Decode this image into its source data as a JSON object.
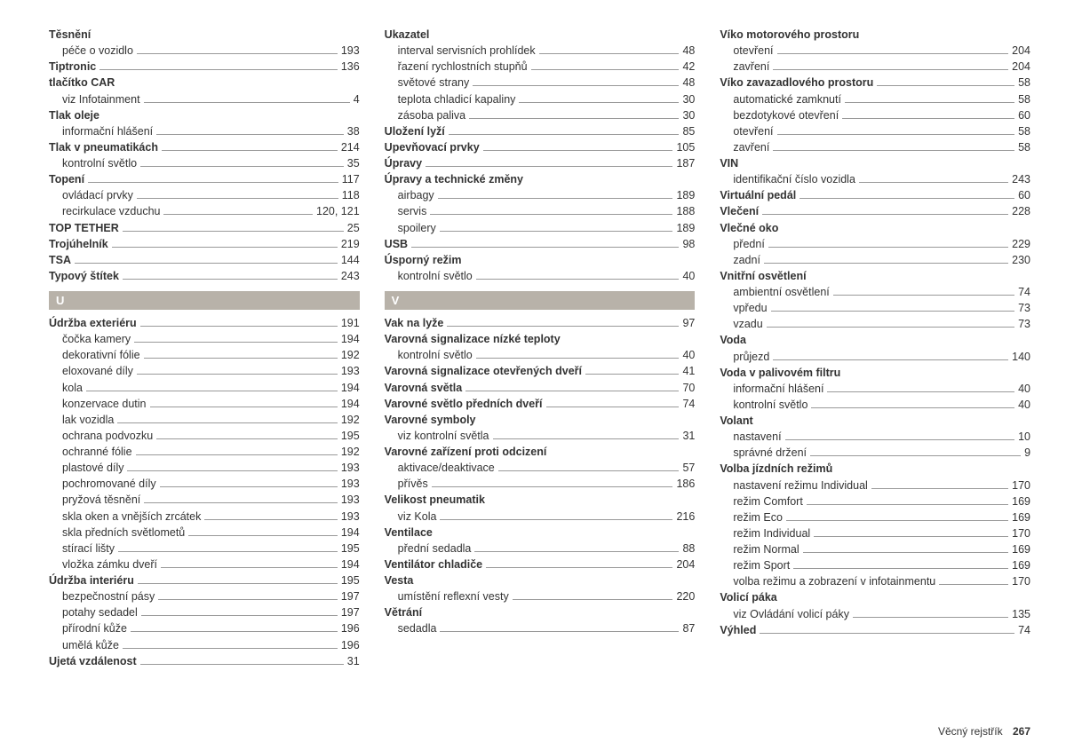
{
  "footer": {
    "label": "Věcný rejstřík",
    "page": "267"
  },
  "columns": [
    {
      "items": [
        {
          "type": "entry",
          "bold": true,
          "label": "Těsnění",
          "heading": true
        },
        {
          "type": "entry",
          "sub": true,
          "label": "péče o vozidlo",
          "page": "193"
        },
        {
          "type": "entry",
          "bold": true,
          "label": "Tiptronic",
          "page": "136"
        },
        {
          "type": "entry",
          "bold": true,
          "label": "tlačítko CAR",
          "heading": true
        },
        {
          "type": "entry",
          "sub": true,
          "label": "viz Infotainment",
          "page": "4"
        },
        {
          "type": "entry",
          "bold": true,
          "label": "Tlak oleje",
          "heading": true
        },
        {
          "type": "entry",
          "sub": true,
          "label": "informační hlášení",
          "page": "38"
        },
        {
          "type": "entry",
          "bold": true,
          "label": "Tlak v pneumatikách",
          "page": "214"
        },
        {
          "type": "entry",
          "sub": true,
          "label": "kontrolní světlo",
          "page": "35"
        },
        {
          "type": "entry",
          "bold": true,
          "label": "Topení",
          "page": "117"
        },
        {
          "type": "entry",
          "sub": true,
          "label": "ovládací prvky",
          "page": "118"
        },
        {
          "type": "entry",
          "sub": true,
          "label": "recirkulace vzduchu",
          "page": "120, 121"
        },
        {
          "type": "entry",
          "bold": true,
          "label": "TOP TETHER",
          "page": "25"
        },
        {
          "type": "entry",
          "bold": true,
          "label": "Trojúhelník",
          "page": "219"
        },
        {
          "type": "entry",
          "bold": true,
          "label": "TSA",
          "page": "144"
        },
        {
          "type": "entry",
          "bold": true,
          "label": "Typový štítek",
          "page": "243"
        },
        {
          "type": "header",
          "label": "U"
        },
        {
          "type": "entry",
          "bold": true,
          "label": "Údržba exteriéru",
          "page": "191"
        },
        {
          "type": "entry",
          "sub": true,
          "label": "čočka kamery",
          "page": "194"
        },
        {
          "type": "entry",
          "sub": true,
          "label": "dekorativní fólie",
          "page": "192"
        },
        {
          "type": "entry",
          "sub": true,
          "label": "eloxované díly",
          "page": "193"
        },
        {
          "type": "entry",
          "sub": true,
          "label": "kola",
          "page": "194"
        },
        {
          "type": "entry",
          "sub": true,
          "label": "konzervace dutin",
          "page": "194"
        },
        {
          "type": "entry",
          "sub": true,
          "label": "lak vozidla",
          "page": "192"
        },
        {
          "type": "entry",
          "sub": true,
          "label": "ochrana podvozku",
          "page": "195"
        },
        {
          "type": "entry",
          "sub": true,
          "label": "ochranné fólie",
          "page": "192"
        },
        {
          "type": "entry",
          "sub": true,
          "label": "plastové díly",
          "page": "193"
        },
        {
          "type": "entry",
          "sub": true,
          "label": "pochromované díly",
          "page": "193"
        },
        {
          "type": "entry",
          "sub": true,
          "label": "pryžová těsnění",
          "page": "193"
        },
        {
          "type": "entry",
          "sub": true,
          "label": "skla oken a vnějších zrcátek",
          "page": "193"
        },
        {
          "type": "entry",
          "sub": true,
          "label": "skla předních světlometů",
          "page": "194"
        },
        {
          "type": "entry",
          "sub": true,
          "label": "stírací lišty",
          "page": "195"
        },
        {
          "type": "entry",
          "sub": true,
          "label": "vložka zámku dveří",
          "page": "194"
        },
        {
          "type": "entry",
          "bold": true,
          "label": "Údržba interiéru",
          "page": "195"
        },
        {
          "type": "entry",
          "sub": true,
          "label": "bezpečnostní pásy",
          "page": "197"
        },
        {
          "type": "entry",
          "sub": true,
          "label": "potahy sedadel",
          "page": "197"
        },
        {
          "type": "entry",
          "sub": true,
          "label": "přírodní kůže",
          "page": "196"
        },
        {
          "type": "entry",
          "sub": true,
          "label": "umělá kůže",
          "page": "196"
        },
        {
          "type": "entry",
          "bold": true,
          "label": "Ujetá vzdálenost",
          "page": "31"
        }
      ]
    },
    {
      "items": [
        {
          "type": "entry",
          "bold": true,
          "label": "Ukazatel",
          "heading": true
        },
        {
          "type": "entry",
          "sub": true,
          "label": "interval servisních prohlídek",
          "page": "48"
        },
        {
          "type": "entry",
          "sub": true,
          "label": "řazení rychlostních stupňů",
          "page": "42"
        },
        {
          "type": "entry",
          "sub": true,
          "label": "světové strany",
          "page": "48"
        },
        {
          "type": "entry",
          "sub": true,
          "label": "teplota chladicí kapaliny",
          "page": "30"
        },
        {
          "type": "entry",
          "sub": true,
          "label": "zásoba paliva",
          "page": "30"
        },
        {
          "type": "entry",
          "bold": true,
          "label": "Uložení lyží",
          "page": "85"
        },
        {
          "type": "entry",
          "bold": true,
          "label": "Upevňovací prvky",
          "page": "105"
        },
        {
          "type": "entry",
          "bold": true,
          "label": "Úpravy",
          "page": "187"
        },
        {
          "type": "entry",
          "bold": true,
          "label": "Úpravy a technické změny",
          "heading": true
        },
        {
          "type": "entry",
          "sub": true,
          "label": "airbagy",
          "page": "189"
        },
        {
          "type": "entry",
          "sub": true,
          "label": "servis",
          "page": "188"
        },
        {
          "type": "entry",
          "sub": true,
          "label": "spoilery",
          "page": "189"
        },
        {
          "type": "entry",
          "bold": true,
          "label": "USB",
          "page": "98"
        },
        {
          "type": "entry",
          "bold": true,
          "label": "Úsporný režim",
          "heading": true
        },
        {
          "type": "entry",
          "sub": true,
          "label": "kontrolní světlo",
          "page": "40"
        },
        {
          "type": "header",
          "label": "V"
        },
        {
          "type": "entry",
          "bold": true,
          "label": "Vak na lyže",
          "page": "97"
        },
        {
          "type": "entry",
          "bold": true,
          "label": "Varovná signalizace nízké teploty",
          "heading": true
        },
        {
          "type": "entry",
          "sub": true,
          "label": "kontrolní světlo",
          "page": "40"
        },
        {
          "type": "entry",
          "bold": true,
          "label": "Varovná signalizace otevřených dveří",
          "page": "41"
        },
        {
          "type": "entry",
          "bold": true,
          "label": "Varovná světla",
          "page": "70"
        },
        {
          "type": "entry",
          "bold": true,
          "label": "Varovné světlo předních dveří",
          "page": "74"
        },
        {
          "type": "entry",
          "bold": true,
          "label": "Varovné symboly",
          "heading": true
        },
        {
          "type": "entry",
          "sub": true,
          "label": "viz kontrolní světla",
          "page": "31"
        },
        {
          "type": "entry",
          "bold": true,
          "label": "Varovné zařízení proti odcizení",
          "heading": true
        },
        {
          "type": "entry",
          "sub": true,
          "label": "aktivace/deaktivace",
          "page": "57"
        },
        {
          "type": "entry",
          "sub": true,
          "label": "přívěs",
          "page": "186"
        },
        {
          "type": "entry",
          "bold": true,
          "label": "Velikost pneumatik",
          "heading": true
        },
        {
          "type": "entry",
          "sub": true,
          "label": "viz Kola",
          "page": "216"
        },
        {
          "type": "entry",
          "bold": true,
          "label": "Ventilace",
          "heading": true
        },
        {
          "type": "entry",
          "sub": true,
          "label": "přední sedadla",
          "page": "88"
        },
        {
          "type": "entry",
          "bold": true,
          "label": "Ventilátor chladiče",
          "page": "204"
        },
        {
          "type": "entry",
          "bold": true,
          "label": "Vesta",
          "heading": true
        },
        {
          "type": "entry",
          "sub": true,
          "label": "umístění reflexní vesty",
          "page": "220"
        },
        {
          "type": "entry",
          "bold": true,
          "label": "Větrání",
          "heading": true
        },
        {
          "type": "entry",
          "sub": true,
          "label": "sedadla",
          "page": "87"
        }
      ]
    },
    {
      "items": [
        {
          "type": "entry",
          "bold": true,
          "label": "Víko motorového prostoru",
          "heading": true
        },
        {
          "type": "entry",
          "sub": true,
          "label": "otevření",
          "page": "204"
        },
        {
          "type": "entry",
          "sub": true,
          "label": "zavření",
          "page": "204"
        },
        {
          "type": "entry",
          "bold": true,
          "label": "Víko zavazadlového prostoru",
          "page": "58"
        },
        {
          "type": "entry",
          "sub": true,
          "label": "automatické zamknutí",
          "page": "58"
        },
        {
          "type": "entry",
          "sub": true,
          "label": "bezdotykové otevření",
          "page": "60"
        },
        {
          "type": "entry",
          "sub": true,
          "label": "otevření",
          "page": "58"
        },
        {
          "type": "entry",
          "sub": true,
          "label": "zavření",
          "page": "58"
        },
        {
          "type": "entry",
          "bold": true,
          "label": "VIN",
          "heading": true
        },
        {
          "type": "entry",
          "sub": true,
          "label": "identifikační číslo vozidla",
          "page": "243"
        },
        {
          "type": "entry",
          "bold": true,
          "label": "Virtuální pedál",
          "page": "60"
        },
        {
          "type": "entry",
          "bold": true,
          "label": "Vlečení",
          "page": "228"
        },
        {
          "type": "entry",
          "bold": true,
          "label": "Vlečné oko",
          "heading": true
        },
        {
          "type": "entry",
          "sub": true,
          "label": "přední",
          "page": "229"
        },
        {
          "type": "entry",
          "sub": true,
          "label": "zadní",
          "page": "230"
        },
        {
          "type": "entry",
          "bold": true,
          "label": "Vnitřní osvětlení",
          "heading": true
        },
        {
          "type": "entry",
          "sub": true,
          "label": "ambientní osvětlení",
          "page": "74"
        },
        {
          "type": "entry",
          "sub": true,
          "label": "vpředu",
          "page": "73"
        },
        {
          "type": "entry",
          "sub": true,
          "label": "vzadu",
          "page": "73"
        },
        {
          "type": "entry",
          "bold": true,
          "label": "Voda",
          "heading": true
        },
        {
          "type": "entry",
          "sub": true,
          "label": "průjezd",
          "page": "140"
        },
        {
          "type": "entry",
          "bold": true,
          "label": "Voda v palivovém filtru",
          "heading": true
        },
        {
          "type": "entry",
          "sub": true,
          "label": "informační hlášení",
          "page": "40"
        },
        {
          "type": "entry",
          "sub": true,
          "label": "kontrolní světlo",
          "page": "40"
        },
        {
          "type": "entry",
          "bold": true,
          "label": "Volant",
          "heading": true
        },
        {
          "type": "entry",
          "sub": true,
          "label": "nastavení",
          "page": "10"
        },
        {
          "type": "entry",
          "sub": true,
          "label": "správné držení",
          "page": "9"
        },
        {
          "type": "entry",
          "bold": true,
          "label": "Volba jízdních režimů",
          "heading": true
        },
        {
          "type": "entry",
          "sub": true,
          "label": "nastavení režimu Individual",
          "page": "170"
        },
        {
          "type": "entry",
          "sub": true,
          "label": "režim Comfort",
          "page": "169"
        },
        {
          "type": "entry",
          "sub": true,
          "label": "režim Eco",
          "page": "169"
        },
        {
          "type": "entry",
          "sub": true,
          "label": "režim Individual",
          "page": "170"
        },
        {
          "type": "entry",
          "sub": true,
          "label": "režim Normal",
          "page": "169"
        },
        {
          "type": "entry",
          "sub": true,
          "label": "režim Sport",
          "page": "169"
        },
        {
          "type": "entry",
          "sub": true,
          "label": "volba režimu a zobrazení v infotainmentu",
          "page": "170"
        },
        {
          "type": "entry",
          "bold": true,
          "label": "Volicí páka",
          "heading": true
        },
        {
          "type": "entry",
          "sub": true,
          "label": "viz Ovládání volicí páky",
          "page": "135"
        },
        {
          "type": "entry",
          "bold": true,
          "label": "Výhled",
          "page": "74"
        }
      ]
    }
  ]
}
